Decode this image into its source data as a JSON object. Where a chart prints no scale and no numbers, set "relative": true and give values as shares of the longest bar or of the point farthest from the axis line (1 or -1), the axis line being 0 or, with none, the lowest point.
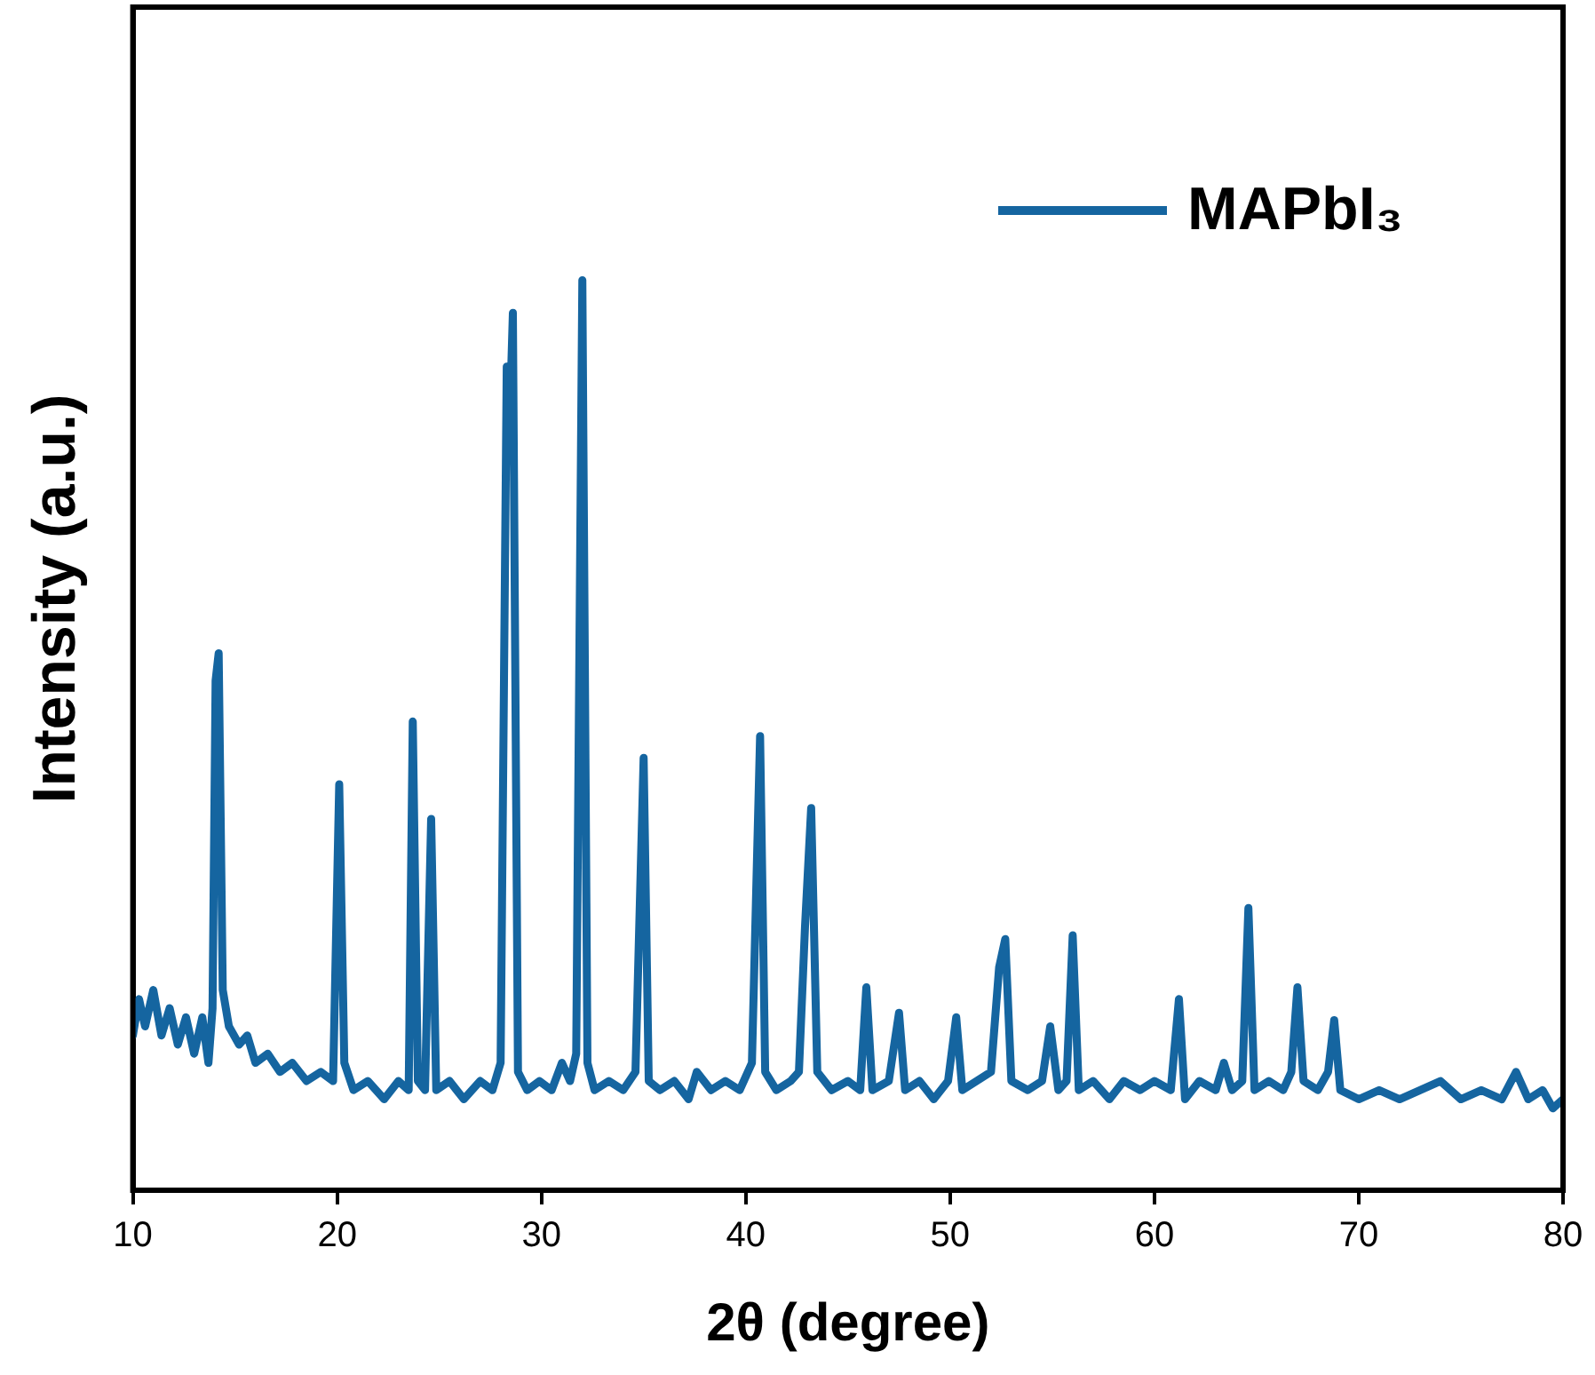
{
  "chart_data": {
    "type": "line",
    "xlabel": "2θ (degree)",
    "ylabel": "Intensity (a.u.)",
    "relative": true,
    "xlim": [
      10,
      80
    ],
    "xticks": [
      10,
      20,
      30,
      40,
      50,
      60,
      70,
      80
    ],
    "legend": "top right",
    "grid": false,
    "marker": "none",
    "line_style": "solid",
    "series": [
      {
        "name": "MAPbI₃",
        "color": "#1565a0",
        "x": [
          10.0,
          10.3,
          10.6,
          11.0,
          11.4,
          11.8,
          12.2,
          12.6,
          13.0,
          13.4,
          13.7,
          13.9,
          14.05,
          14.2,
          14.4,
          14.7,
          15.2,
          15.6,
          16.0,
          16.6,
          17.2,
          17.8,
          18.5,
          19.2,
          19.8,
          20.1,
          20.35,
          20.8,
          21.5,
          22.3,
          23.0,
          23.5,
          23.7,
          23.95,
          24.3,
          24.6,
          24.85,
          25.5,
          26.2,
          27.0,
          27.6,
          28.0,
          28.3,
          28.45,
          28.6,
          28.85,
          29.3,
          29.9,
          30.5,
          31.0,
          31.4,
          31.7,
          32.0,
          32.25,
          32.6,
          33.3,
          34.0,
          34.6,
          35.0,
          35.25,
          35.8,
          36.5,
          37.2,
          37.6,
          38.3,
          39.0,
          39.7,
          40.3,
          40.7,
          40.95,
          41.5,
          42.2,
          42.6,
          42.9,
          43.2,
          43.5,
          44.2,
          45.0,
          45.6,
          45.9,
          46.2,
          47.0,
          47.5,
          47.8,
          48.5,
          49.2,
          49.9,
          50.3,
          50.6,
          51.3,
          52.0,
          52.4,
          52.7,
          53.0,
          53.8,
          54.5,
          54.9,
          55.3,
          55.7,
          56.0,
          56.3,
          57.0,
          57.8,
          58.5,
          59.3,
          60.0,
          60.8,
          61.2,
          61.5,
          62.2,
          63.0,
          63.4,
          63.8,
          64.3,
          64.6,
          64.9,
          65.6,
          66.3,
          66.7,
          67.0,
          67.3,
          68.0,
          68.5,
          68.8,
          69.1,
          70.0,
          71.0,
          72.0,
          73.0,
          74.0,
          75.0,
          76.0,
          77.0,
          77.7,
          78.3,
          79.0,
          79.5,
          80.0
        ],
        "values": [
          0.17,
          0.21,
          0.18,
          0.22,
          0.17,
          0.2,
          0.16,
          0.19,
          0.15,
          0.19,
          0.14,
          0.2,
          0.56,
          0.59,
          0.22,
          0.18,
          0.16,
          0.17,
          0.14,
          0.15,
          0.13,
          0.14,
          0.12,
          0.13,
          0.12,
          0.446,
          0.14,
          0.11,
          0.12,
          0.1,
          0.12,
          0.11,
          0.515,
          0.12,
          0.11,
          0.408,
          0.11,
          0.12,
          0.1,
          0.12,
          0.11,
          0.14,
          0.905,
          0.85,
          0.964,
          0.13,
          0.11,
          0.12,
          0.11,
          0.14,
          0.12,
          0.15,
          1.0,
          0.14,
          0.11,
          0.12,
          0.11,
          0.13,
          0.475,
          0.12,
          0.11,
          0.12,
          0.1,
          0.13,
          0.11,
          0.12,
          0.11,
          0.14,
          0.499,
          0.13,
          0.11,
          0.12,
          0.13,
          0.29,
          0.42,
          0.13,
          0.11,
          0.12,
          0.11,
          0.223,
          0.11,
          0.12,
          0.195,
          0.11,
          0.12,
          0.1,
          0.12,
          0.19,
          0.11,
          0.12,
          0.13,
          0.245,
          0.276,
          0.12,
          0.11,
          0.12,
          0.18,
          0.11,
          0.12,
          0.28,
          0.11,
          0.12,
          0.1,
          0.12,
          0.11,
          0.12,
          0.11,
          0.21,
          0.1,
          0.12,
          0.11,
          0.14,
          0.11,
          0.12,
          0.31,
          0.11,
          0.12,
          0.11,
          0.13,
          0.223,
          0.12,
          0.11,
          0.13,
          0.187,
          0.11,
          0.1,
          0.11,
          0.1,
          0.11,
          0.12,
          0.1,
          0.11,
          0.1,
          0.13,
          0.1,
          0.11,
          0.09,
          0.1
        ]
      }
    ]
  }
}
